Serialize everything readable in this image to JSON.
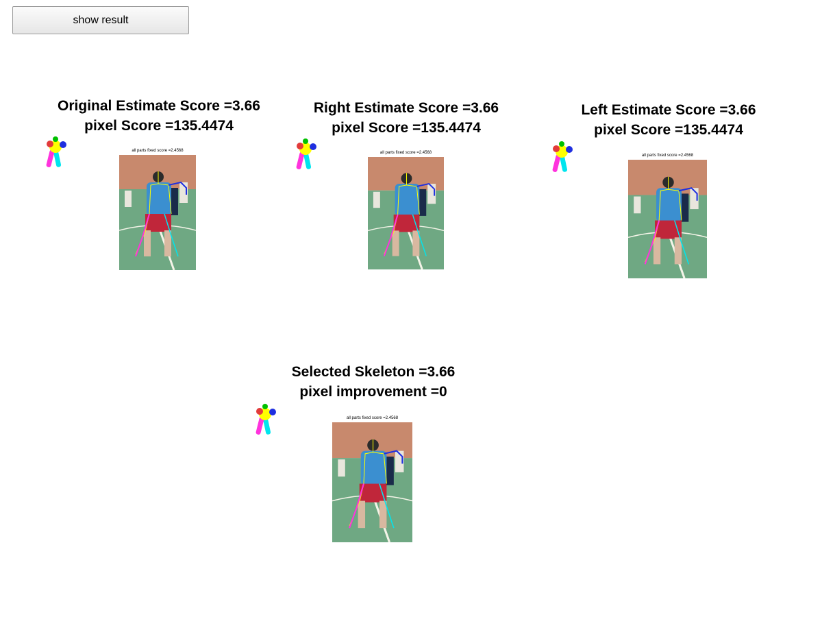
{
  "toolbar": {
    "show_result_label": "show result"
  },
  "panels": [
    {
      "title_line1": "Original Estimate Score =3.66",
      "title_line2": "pixel Score =135.4474",
      "caption": "all parts fixed score =2.4568"
    },
    {
      "title_line1": "Right Estimate Score =3.66",
      "title_line2": "pixel Score =135.4474",
      "caption": "all parts fixed score =2.4568"
    },
    {
      "title_line1": "Left Estimate Score =3.66",
      "title_line2": "pixel Score =135.4474",
      "caption": "all parts fixed score =2.4568"
    },
    {
      "title_line1": "Selected Skeleton =3.66",
      "title_line2": "pixel improvement =0",
      "caption": "all parts fixed score =2.4568"
    }
  ],
  "colors": {
    "court": "#6fa883",
    "wall": "#c8896d",
    "shirt": "#3b8fd0",
    "shorts": "#c0263a",
    "skeleton_yellow": "#ffff00",
    "skeleton_cyan": "#00e5ee",
    "skeleton_magenta": "#ff33dd",
    "skeleton_blue": "#1f2fe0"
  }
}
